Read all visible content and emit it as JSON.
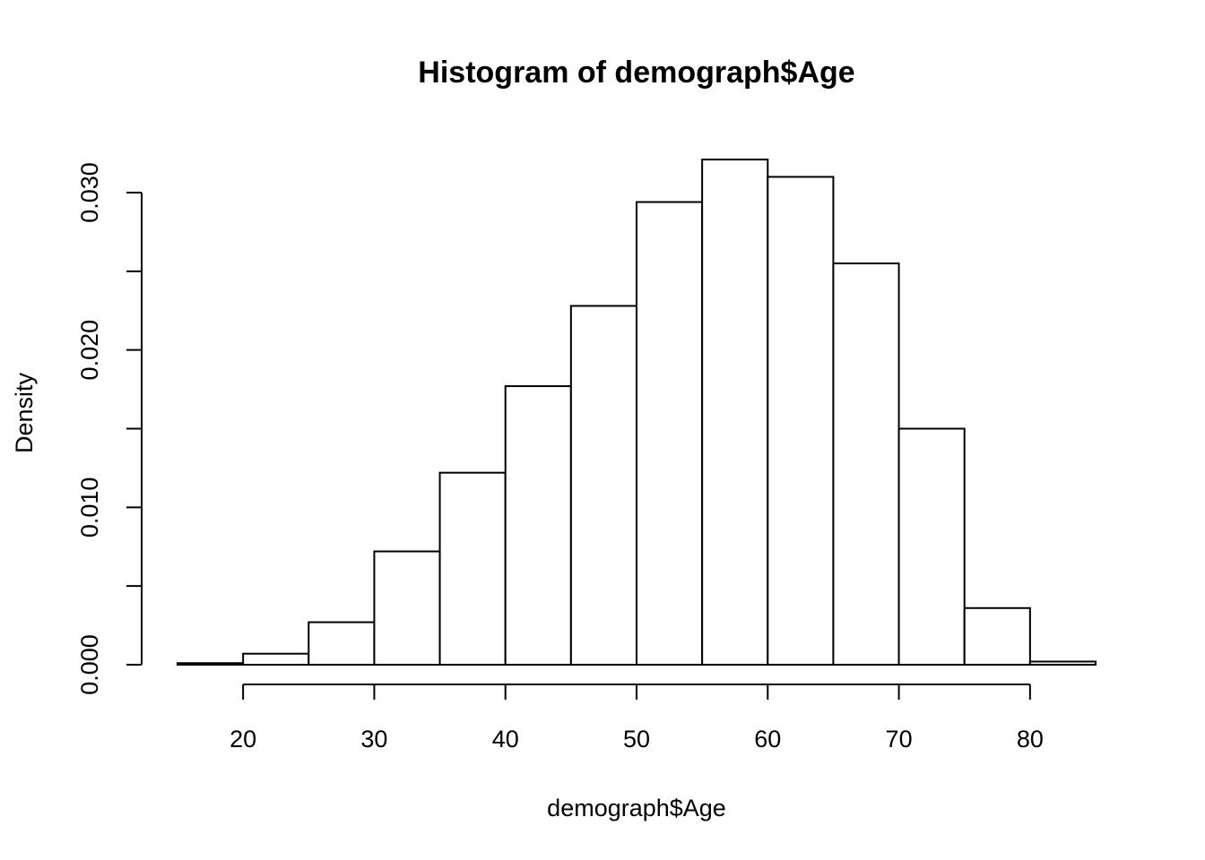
{
  "chart_data": {
    "type": "bar",
    "subtype": "histogram",
    "title": "Histogram of demograph$Age",
    "xlabel": "demograph$Age",
    "ylabel": "Density",
    "bins": [
      {
        "x0": 15,
        "x1": 20,
        "density": 0.0001
      },
      {
        "x0": 20,
        "x1": 25,
        "density": 0.0007
      },
      {
        "x0": 25,
        "x1": 30,
        "density": 0.0027
      },
      {
        "x0": 30,
        "x1": 35,
        "density": 0.0072
      },
      {
        "x0": 35,
        "x1": 40,
        "density": 0.0122
      },
      {
        "x0": 40,
        "x1": 45,
        "density": 0.0177
      },
      {
        "x0": 45,
        "x1": 50,
        "density": 0.0228
      },
      {
        "x0": 50,
        "x1": 55,
        "density": 0.0294
      },
      {
        "x0": 55,
        "x1": 60,
        "density": 0.0321
      },
      {
        "x0": 60,
        "x1": 65,
        "density": 0.031
      },
      {
        "x0": 65,
        "x1": 70,
        "density": 0.0255
      },
      {
        "x0": 70,
        "x1": 75,
        "density": 0.015
      },
      {
        "x0": 75,
        "x1": 80,
        "density": 0.0036
      },
      {
        "x0": 80,
        "x1": 85,
        "density": 0.0002
      }
    ],
    "xlim": [
      15,
      85
    ],
    "ylim": [
      0,
      0.032
    ],
    "x_ticks": [
      20,
      30,
      40,
      50,
      60,
      70,
      80
    ],
    "x_tick_labels": [
      "20",
      "30",
      "40",
      "50",
      "60",
      "70",
      "80"
    ],
    "y_ticks": [
      0,
      0.005,
      0.01,
      0.015,
      0.02,
      0.025,
      0.03
    ],
    "y_tick_labels": [
      "0.000",
      "",
      "0.010",
      "",
      "0.020",
      "",
      "0.030"
    ],
    "grid": false,
    "legend": "none"
  }
}
